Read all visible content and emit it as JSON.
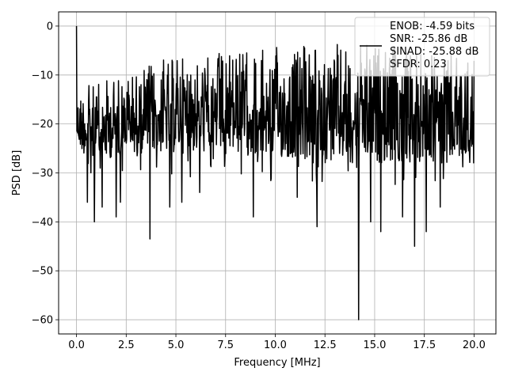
{
  "chart_data": {
    "type": "line",
    "title": "",
    "xlabel": "Frequency [MHz]",
    "ylabel": "PSD [dB]",
    "xlim": [
      -0.9,
      21.1
    ],
    "ylim": [
      -62.9,
      2.9
    ],
    "x_ticks": [
      0.0,
      2.5,
      5.0,
      7.5,
      10.0,
      12.5,
      15.0,
      17.5,
      20.0
    ],
    "x_tick_labels": [
      "0.0",
      "2.5",
      "5.0",
      "7.5",
      "10.0",
      "12.5",
      "15.0",
      "17.5",
      "20.0"
    ],
    "y_ticks": [
      0,
      -10,
      -20,
      -30,
      -40,
      -50,
      -60
    ],
    "y_tick_labels": [
      "0",
      "−10",
      "−20",
      "−30",
      "−40",
      "−50",
      "−60"
    ],
    "grid": true,
    "legend_position": "top-right",
    "line_color": "#000000",
    "series": [
      {
        "name": "ENOB: -4.59 bits\nSNR: -25.86 dB\nSINAD: -25.88 dB\nSFDR: 0.23",
        "legend_lines": [
          "ENOB: -4.59 bits",
          "SNR: -25.86 dB",
          "SINAD: -25.88 dB",
          "SFDR: 0.23"
        ],
        "x_range": [
          0.0,
          20.0
        ],
        "n_points": 1024,
        "dc_value": 0.0,
        "upper_envelope": [
          [
            0.0,
            -14
          ],
          [
            0.3,
            -12
          ],
          [
            1.0,
            -11.5
          ],
          [
            2.5,
            -9
          ],
          [
            3.5,
            -7.5
          ],
          [
            5.0,
            -5.5
          ],
          [
            7.5,
            -4.5
          ],
          [
            10.0,
            -4
          ],
          [
            12.5,
            -3.5
          ],
          [
            15.0,
            -3.5
          ],
          [
            17.5,
            -4.5
          ],
          [
            20.0,
            -6
          ]
        ],
        "lower_envelope": [
          [
            0.0,
            -24
          ],
          [
            0.3,
            -26
          ],
          [
            1.0,
            -28
          ],
          [
            2.5,
            -26
          ],
          [
            5.0,
            -26
          ],
          [
            7.5,
            -26
          ],
          [
            10.0,
            -27
          ],
          [
            12.5,
            -28
          ],
          [
            15.0,
            -28
          ],
          [
            17.5,
            -28
          ],
          [
            20.0,
            -28
          ]
        ],
        "notable_dips": [
          {
            "x": 0.55,
            "y": -36
          },
          {
            "x": 0.9,
            "y": -40
          },
          {
            "x": 1.3,
            "y": -37
          },
          {
            "x": 2.0,
            "y": -39
          },
          {
            "x": 2.2,
            "y": -36
          },
          {
            "x": 3.7,
            "y": -43.5
          },
          {
            "x": 4.7,
            "y": -37
          },
          {
            "x": 5.3,
            "y": -36
          },
          {
            "x": 6.2,
            "y": -34
          },
          {
            "x": 8.9,
            "y": -39
          },
          {
            "x": 11.1,
            "y": -35
          },
          {
            "x": 12.1,
            "y": -41
          },
          {
            "x": 14.2,
            "y": -60
          },
          {
            "x": 14.8,
            "y": -40
          },
          {
            "x": 15.3,
            "y": -42
          },
          {
            "x": 16.4,
            "y": -39
          },
          {
            "x": 17.0,
            "y": -45
          },
          {
            "x": 17.6,
            "y": -42
          },
          {
            "x": 18.3,
            "y": -37
          }
        ]
      }
    ]
  }
}
